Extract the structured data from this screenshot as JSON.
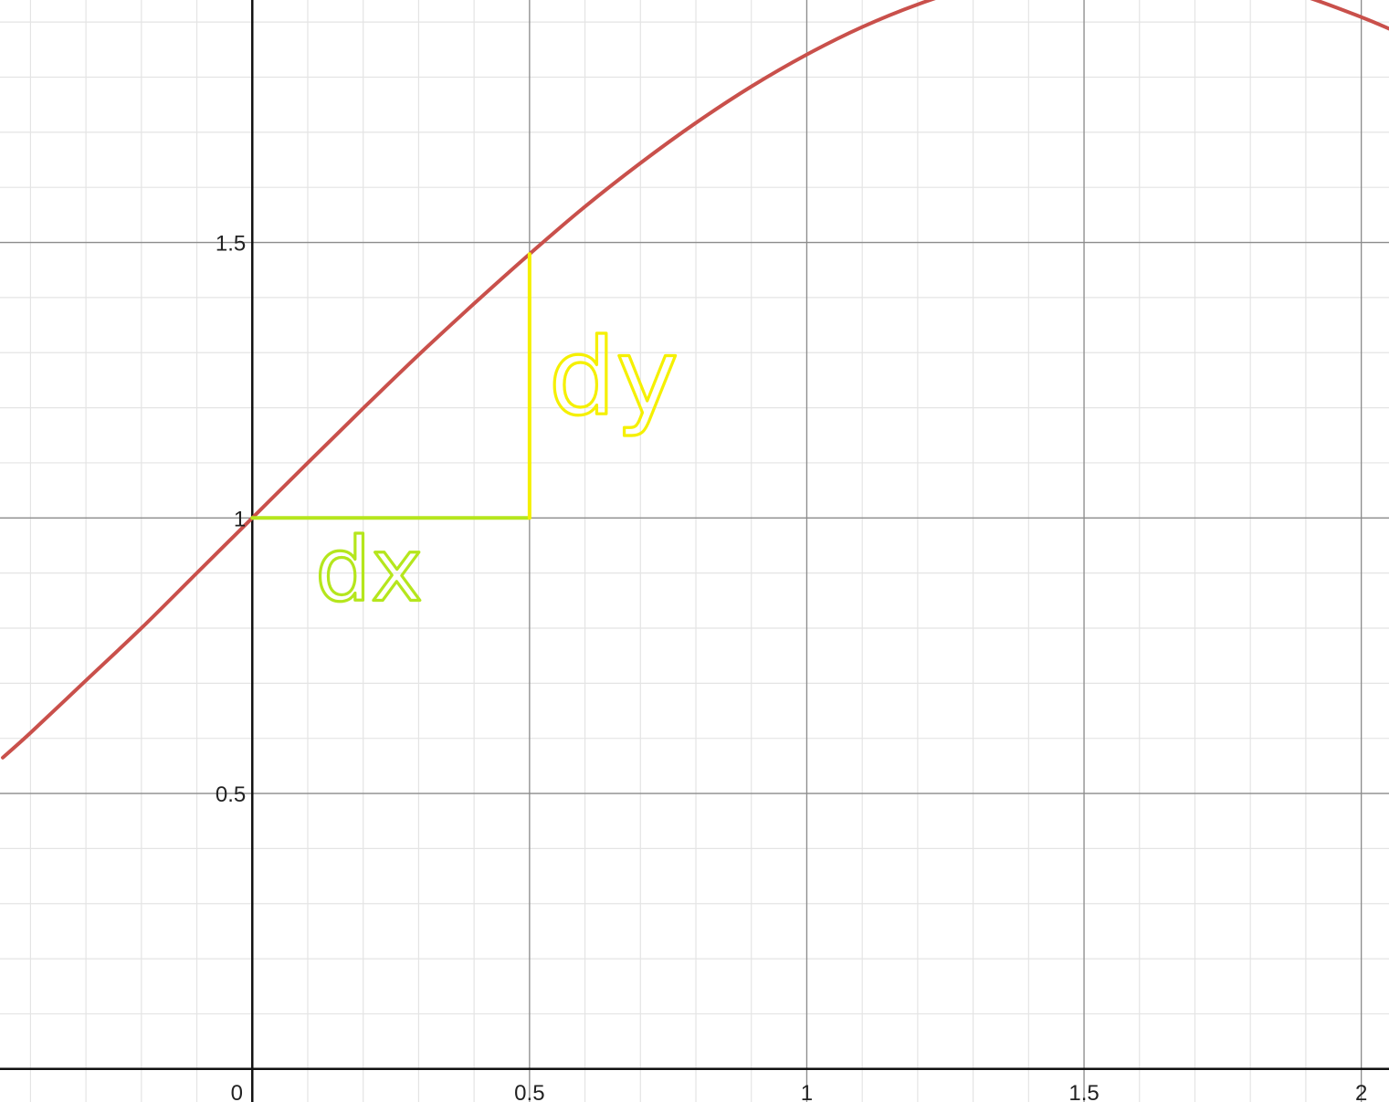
{
  "chart_data": {
    "type": "line",
    "title": "",
    "xlabel": "",
    "ylabel": "",
    "xlim": [
      -0.455,
      2.05
    ],
    "ylim": [
      -0.06,
      1.94
    ],
    "grid": true,
    "x_major_ticks": [
      0,
      0.5,
      1,
      1.5,
      2
    ],
    "x_tick_labels": [
      "0",
      "0.5",
      "1",
      "1.5",
      "2"
    ],
    "y_major_ticks": [
      0.5,
      1,
      1.5
    ],
    "y_tick_labels": [
      "0.5",
      "1",
      "1.5"
    ],
    "minor_step": 0.1,
    "series": [
      {
        "color": "#c9504b",
        "x": [
          -0.45,
          -0.4,
          -0.3,
          -0.2,
          -0.1,
          0,
          0.1,
          0.2,
          0.3,
          0.4,
          0.5,
          0.6,
          0.7,
          0.8,
          0.9,
          1.0,
          1.1,
          1.2,
          1.3,
          1.4,
          1.5,
          1.6,
          1.7,
          1.8,
          1.9,
          2.0,
          2.05
        ],
        "y": [
          0.565,
          0.61,
          0.705,
          0.8,
          0.9,
          1.0,
          1.1,
          1.199,
          1.296,
          1.389,
          1.479,
          1.565,
          1.644,
          1.717,
          1.783,
          1.841,
          1.891,
          1.932,
          1.964,
          1.985,
          1.997,
          1.999,
          1.992,
          1.974,
          1.946,
          1.909,
          1.888
        ]
      }
    ],
    "annotations": [
      {
        "name": "dx",
        "text": "dx",
        "color": "#b5e61d",
        "segment": {
          "x": [
            0,
            0.5
          ],
          "y": [
            1,
            1
          ]
        }
      },
      {
        "name": "dy",
        "text": "dy",
        "color": "#f5f000",
        "segment": {
          "x": [
            0.5,
            0.5
          ],
          "y": [
            1,
            1.479
          ]
        }
      }
    ]
  }
}
